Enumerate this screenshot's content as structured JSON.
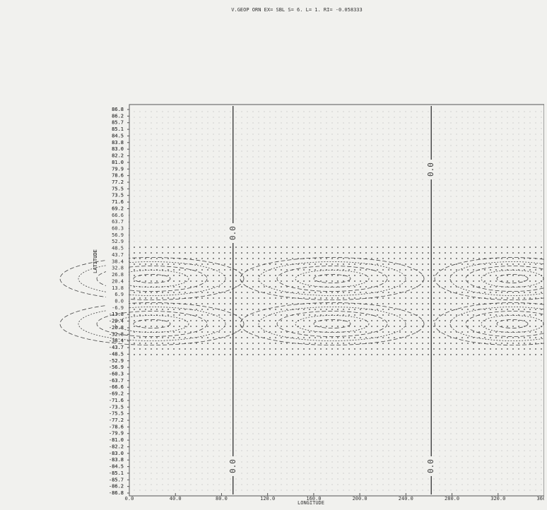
{
  "chart_data": {
    "type": "contour",
    "title": "V.GEOP ORN EX= SBL S= 6. L= 1. RI= -0.058333",
    "xlabel": "LONGITUDE",
    "ylabel": "LATITUDE",
    "xlim": [
      0,
      360
    ],
    "xticks": [
      {
        "value": 0,
        "label": "0.0"
      },
      {
        "value": 40,
        "label": "40.0"
      },
      {
        "value": 80,
        "label": "80.0"
      },
      {
        "value": 120,
        "label": "120.0"
      },
      {
        "value": 160,
        "label": "160.0"
      },
      {
        "value": 200,
        "label": "200.0"
      },
      {
        "value": 240,
        "label": "240.0"
      },
      {
        "value": 280,
        "label": "280.0"
      },
      {
        "value": 320,
        "label": "320.0"
      },
      {
        "value": 360,
        "label": "360.0"
      }
    ],
    "y_categories": [
      "86.8",
      "86.2",
      "85.7",
      "85.1",
      "84.5",
      "83.8",
      "83.0",
      "82.2",
      "81.0",
      "79.9",
      "78.6",
      "77.2",
      "75.5",
      "73.5",
      "71.6",
      "69.2",
      "66.6",
      "63.7",
      "60.3",
      "56.9",
      "52.9",
      "48.5",
      "43.7",
      "38.4",
      "32.8",
      "26.8",
      "20.4",
      "13.8",
      "6.9",
      "0.0",
      "-6.9",
      "-13.8",
      "-20.4",
      "-26.8",
      "-32.8",
      "-38.4",
      "-43.7",
      "-48.5",
      "-52.9",
      "-56.9",
      "-60.3",
      "-63.7",
      "-66.6",
      "-69.2",
      "-71.6",
      "-73.5",
      "-75.5",
      "-77.2",
      "-78.6",
      "-79.9",
      "-81.0",
      "-82.2",
      "-83.0",
      "-83.8",
      "-84.5",
      "-85.1",
      "-85.7",
      "-86.2",
      "-86.8"
    ],
    "zero_contours": [
      {
        "x": 90,
        "labels": [
          "0.0",
          "0.0"
        ]
      },
      {
        "x": 262,
        "labels": [
          "0.0",
          "0.0"
        ]
      }
    ],
    "color": "#333333"
  }
}
